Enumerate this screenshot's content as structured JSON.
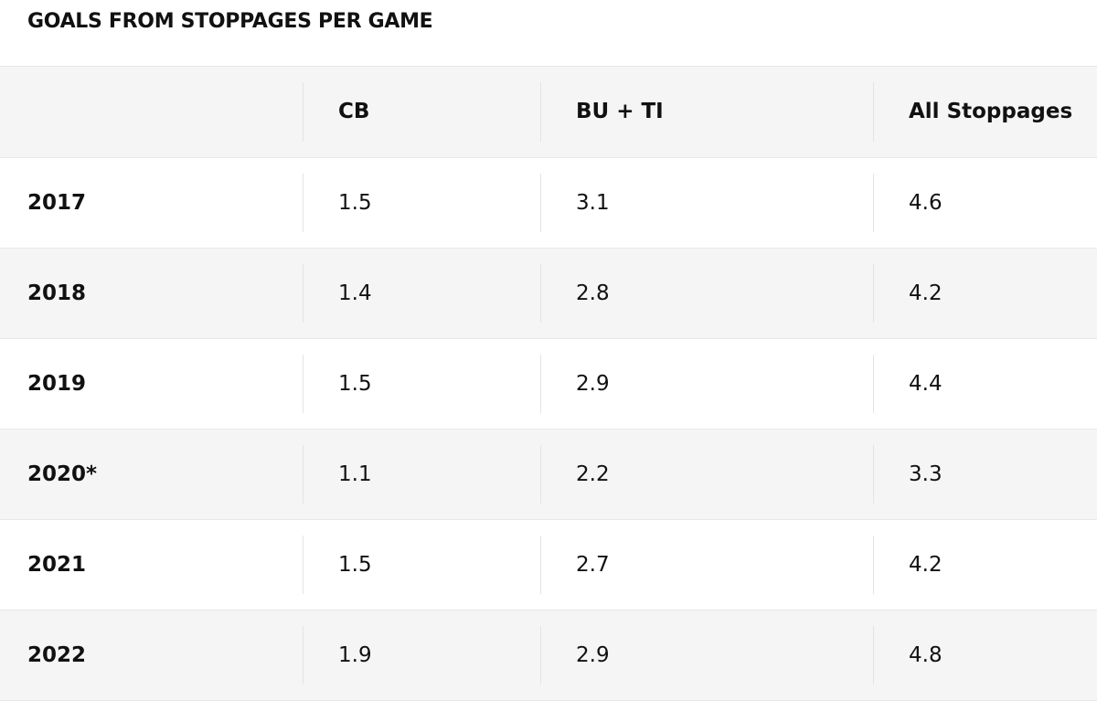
{
  "title": "GOALS FROM STOPPAGES PER GAME",
  "table": {
    "columns": [
      "",
      "CB",
      "BU + TI",
      "All Stoppages"
    ],
    "rows": [
      {
        "year": "2017",
        "cb": "1.5",
        "bu_ti": "3.1",
        "all": "4.6"
      },
      {
        "year": "2018",
        "cb": "1.4",
        "bu_ti": "2.8",
        "all": "4.2"
      },
      {
        "year": "2019",
        "cb": "1.5",
        "bu_ti": "2.9",
        "all": "4.4"
      },
      {
        "year": "2020*",
        "cb": "1.1",
        "bu_ti": "2.2",
        "all": "3.3"
      },
      {
        "year": "2021",
        "cb": "1.5",
        "bu_ti": "2.7",
        "all": "4.2"
      },
      {
        "year": "2022",
        "cb": "1.9",
        "bu_ti": "2.9",
        "all": "4.8"
      }
    ]
  },
  "colors": {
    "shaded_row": "#f5f5f5",
    "text": "#111111",
    "divider": "#e4e4e4"
  }
}
